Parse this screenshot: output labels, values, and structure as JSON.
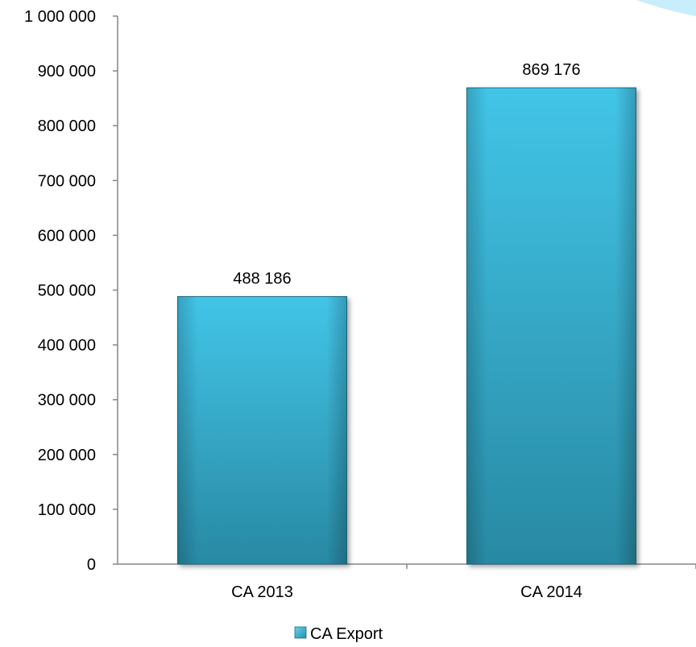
{
  "chart_data": {
    "type": "bar",
    "categories": [
      "CA 2013",
      "CA 2014"
    ],
    "series": [
      {
        "name": "CA Export",
        "values": [
          488186,
          869176
        ]
      }
    ],
    "data_labels": [
      "488 186",
      "869 176"
    ],
    "y_ticks": [
      0,
      100000,
      200000,
      300000,
      400000,
      500000,
      600000,
      700000,
      800000,
      900000,
      1000000
    ],
    "y_tick_labels": [
      "0",
      "100 000",
      "200 000",
      "300 000",
      "400 000",
      "500 000",
      "600 000",
      "700 000",
      "800 000",
      "900 000",
      "1 000 000"
    ],
    "ylim": [
      0,
      1000000
    ],
    "grid": false,
    "legend_position": "bottom",
    "colors": {
      "bar_light": "#3fc3e6",
      "bar_dark": "#2a8ea8",
      "bar_edge": "#1f6f85",
      "axis": "#868686",
      "decoration": "#c4ecfb"
    }
  }
}
